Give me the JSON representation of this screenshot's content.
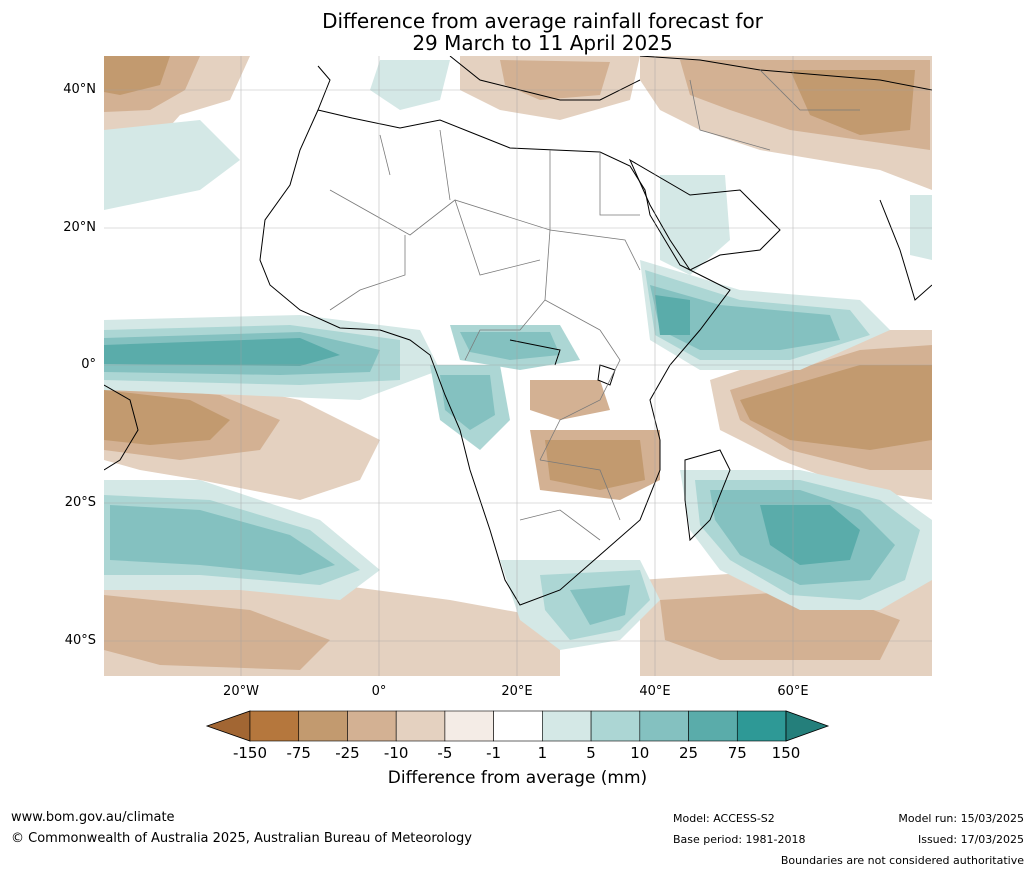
{
  "title": {
    "line1": "Difference from average rainfall forecast for",
    "line2": "29 March to 11 April 2025"
  },
  "axes": {
    "lat_labels": [
      "40°N",
      "20°N",
      "0°",
      "20°S",
      "40°S"
    ],
    "lon_labels": [
      "20°W",
      "0°",
      "20°E",
      "40°E",
      "60°E"
    ]
  },
  "colorbar": {
    "ticks": [
      "-150",
      "-75",
      "-25",
      "-10",
      "-5",
      "-1",
      "1",
      "5",
      "10",
      "25",
      "75",
      "150"
    ],
    "colors": [
      "#a26633",
      "#b5773d",
      "#c29a6f",
      "#d3b193",
      "#e4d1c0",
      "#f4ece6",
      "#ffffff",
      "#d4e8e6",
      "#acd6d4",
      "#84c1c0",
      "#5aacaa",
      "#2e9996",
      "#247f7b"
    ],
    "title": "Difference from average (mm)"
  },
  "footer": {
    "website": "www.bom.gov.au/climate",
    "copyright": "© Commonwealth of Australia 2025, Australian Bureau of Meteorology",
    "model": "Model: ACCESS-S2",
    "base_period": "Base period: 1981-2018",
    "model_run": "Model run: 15/03/2025",
    "issued": "Issued: 17/03/2025",
    "disclaimer": "Boundaries are not considered authoritative"
  }
}
